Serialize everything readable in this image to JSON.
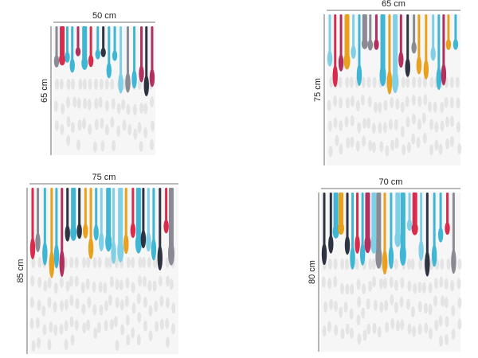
{
  "panels": [
    {
      "width": "50 cm",
      "height": "65 cm"
    },
    {
      "width": "65 cm",
      "height": "75 cm"
    },
    {
      "width": "75 cm",
      "height": "85 cm"
    },
    {
      "width": "70 cm",
      "height": "80 cm"
    }
  ]
}
